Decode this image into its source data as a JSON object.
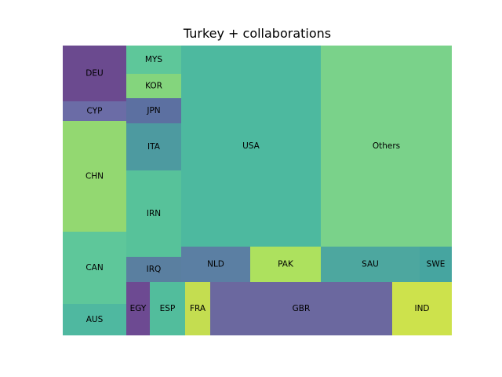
{
  "chart_data": {
    "type": "treemap",
    "title": "Turkey + collaborations",
    "cells": [
      {
        "label": "DEU",
        "color": "#6b4a8f"
      },
      {
        "label": "CYP",
        "color": "#6b6ca6"
      },
      {
        "label": "CHN",
        "color": "#93d871"
      },
      {
        "label": "CAN",
        "color": "#5ec79a"
      },
      {
        "label": "AUS",
        "color": "#4fb8a0"
      },
      {
        "label": "MYS",
        "color": "#5ec79a"
      },
      {
        "label": "KOR",
        "color": "#84d57d"
      },
      {
        "label": "JPN",
        "color": "#5c70a1"
      },
      {
        "label": "ITA",
        "color": "#4d9aa0"
      },
      {
        "label": "IRN",
        "color": "#57c29a"
      },
      {
        "label": "IRQ",
        "color": "#5a7fa0"
      },
      {
        "label": "EGY",
        "color": "#6d4a92"
      },
      {
        "label": "ESP",
        "color": "#52bd9c"
      },
      {
        "label": "FRA",
        "color": "#c4dd50"
      },
      {
        "label": "USA",
        "color": "#4db99f"
      },
      {
        "label": "NLD",
        "color": "#5b7fa3"
      },
      {
        "label": "PAK",
        "color": "#ade15e"
      },
      {
        "label": "GBR",
        "color": "#6b689f"
      },
      {
        "label": "Others",
        "color": "#7ad28a"
      },
      {
        "label": "SAU",
        "color": "#4da79f"
      },
      {
        "label": "SWE",
        "color": "#46a5a0"
      },
      {
        "label": "IND",
        "color": "#cde24c"
      }
    ]
  }
}
